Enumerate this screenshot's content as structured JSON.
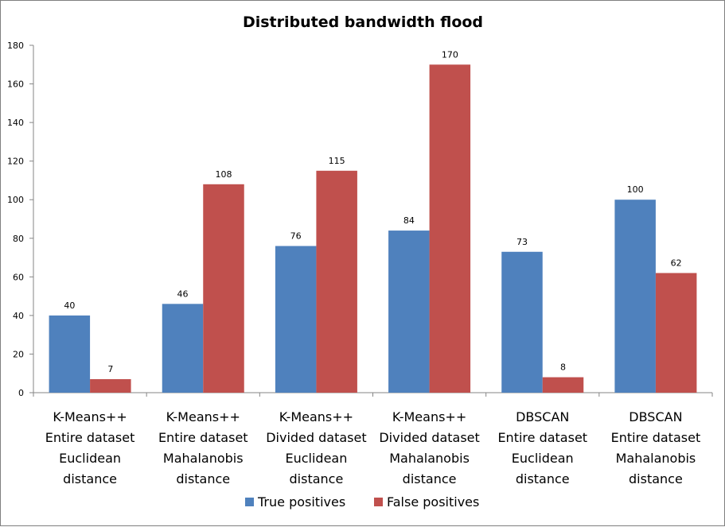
{
  "chart_data": {
    "type": "bar",
    "title": "Distributed bandwidth flood",
    "xlabel": "",
    "ylabel": "",
    "ylim": [
      0,
      180
    ],
    "yticks": [
      0,
      20,
      40,
      60,
      80,
      100,
      120,
      140,
      160,
      180
    ],
    "grid": false,
    "legend_position": "bottom",
    "categories": [
      [
        "K-Means++",
        "Entire dataset",
        "Euclidean",
        "distance"
      ],
      [
        "K-Means++",
        "Entire dataset",
        "Mahalanobis",
        "distance"
      ],
      [
        "K-Means++",
        "Divided dataset",
        "Euclidean",
        "distance"
      ],
      [
        "K-Means++",
        "Divided dataset",
        "Mahalanobis",
        "distance"
      ],
      [
        "DBSCAN",
        "Entire dataset",
        "Euclidean",
        "distance"
      ],
      [
        "DBSCAN",
        "Entire dataset",
        "Mahalanobis",
        "distance"
      ]
    ],
    "series": [
      {
        "name": "True positives",
        "color": "#4f81bd",
        "values": [
          40,
          46,
          76,
          84,
          73,
          100
        ]
      },
      {
        "name": "False positives",
        "color": "#c0504d",
        "values": [
          7,
          108,
          115,
          170,
          8,
          62
        ]
      }
    ]
  }
}
